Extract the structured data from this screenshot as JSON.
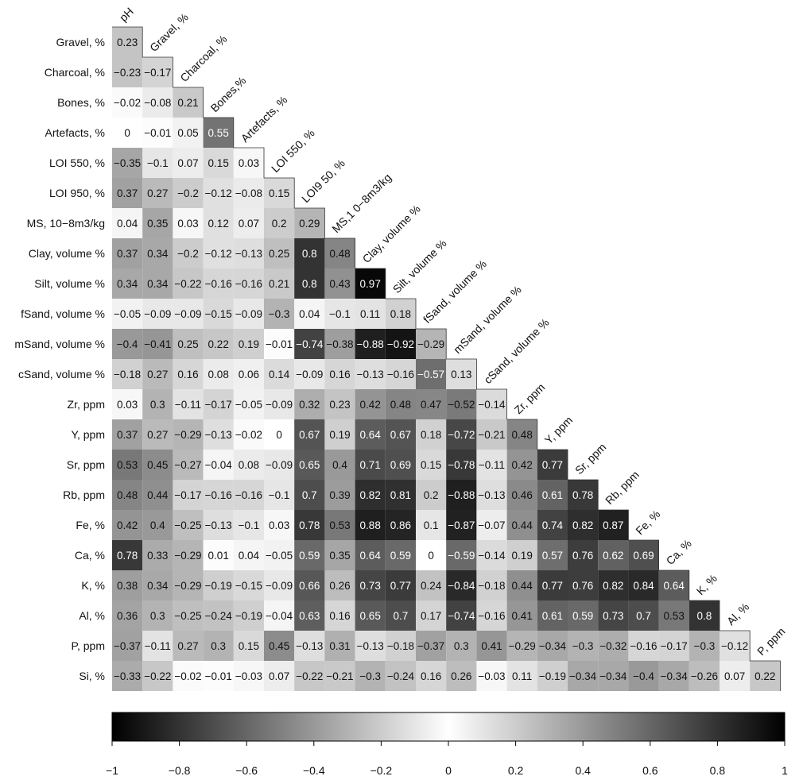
{
  "chart_data": {
    "type": "heatmap",
    "title": "",
    "variables": [
      "pH",
      "Gravel, %",
      "Charcoal, %",
      "Bones, %",
      "Artefacts, %",
      "LOI 550, %",
      "LOI 950, %",
      "MS, 10−8m3/kg",
      "Clay, volume %",
      "Silt, volume %",
      "fSand, volume %",
      "mSand, volume %",
      "cSand, volume %",
      "Zr, ppm",
      "Y, ppm",
      "Sr, ppm",
      "Rb, ppm",
      "Fe, %",
      "Ca, %",
      "K, %",
      "Al, %",
      "P, ppm",
      "Si, %"
    ],
    "column_labels": [
      "pH",
      "Gravel, %",
      "Charcoal, %",
      "Bones,%",
      "Artefacts, %",
      "LOI 550, %",
      "LOI9 50, %",
      "MS,1 0−8m3/kg",
      "Clay, volume %",
      "Silt, volume %",
      "fSand, volume %",
      "mSand, volume %",
      "cSand, volume %",
      "Zr, ppm",
      "Y, ppm",
      "Sr, ppm",
      "Rb, ppm",
      "Fe, %",
      "Ca, %",
      "K, %",
      "Al, %",
      "P, ppm"
    ],
    "value_labels": [
      [
        "0.23"
      ],
      [
        "−0.23",
        "−0.17"
      ],
      [
        "−0.02",
        "−0.08",
        "0.21"
      ],
      [
        "0",
        "−0.01",
        "0.05",
        "0.55"
      ],
      [
        "−0.35",
        "−0.1",
        "0.07",
        "0.15",
        "0.03"
      ],
      [
        "0.37",
        "0.27",
        "−0.2",
        "−0.12",
        "−0.08",
        "0.15"
      ],
      [
        "0.04",
        "0.35",
        "0.03",
        "0.12",
        "0.07",
        "0.2",
        "0.29"
      ],
      [
        "0.37",
        "0.34",
        "−0.2",
        "−0.12",
        "−0.13",
        "0.25",
        "0.8",
        "0.48"
      ],
      [
        "0.34",
        "0.34",
        "−0.22",
        "−0.16",
        "−0.16",
        "0.21",
        "0.8",
        "0.43",
        "0.97"
      ],
      [
        "−0.05",
        "−0.09",
        "−0.09",
        "−0.15",
        "−0.09",
        "−0.3",
        "0.04",
        "−0.1",
        "0.11",
        "0.18"
      ],
      [
        "−0.4",
        "−0.41",
        "0.25",
        "0.22",
        "0.19",
        "−0.01",
        "−0.74",
        "−0.38",
        "−0.88",
        "−0.92",
        "−0.29"
      ],
      [
        "−0.18",
        "0.27",
        "0.16",
        "0.08",
        "0.06",
        "0.14",
        "−0.09",
        "0.16",
        "−0.13",
        "−0.16",
        "−0.57",
        "0.13"
      ],
      [
        "0.03",
        "0.3",
        "−0.11",
        "−0.17",
        "−0.05",
        "−0.09",
        "0.32",
        "0.23",
        "0.42",
        "0.48",
        "0.47",
        "−0.52",
        "−0.14"
      ],
      [
        "0.37",
        "0.27",
        "−0.29",
        "−0.13",
        "−0.02",
        "0",
        "0.67",
        "0.19",
        "0.64",
        "0.67",
        "0.18",
        "−0.72",
        "−0.21",
        "0.48"
      ],
      [
        "0.53",
        "0.45",
        "−0.27",
        "−0.04",
        "0.08",
        "−0.09",
        "0.65",
        "0.4",
        "0.71",
        "0.69",
        "0.15",
        "−0.78",
        "−0.11",
        "0.42",
        "0.77"
      ],
      [
        "0.48",
        "0.44",
        "−0.17",
        "−0.16",
        "−0.16",
        "−0.1",
        "0.7",
        "0.39",
        "0.82",
        "0.81",
        "0.2",
        "−0.88",
        "−0.13",
        "0.46",
        "0.61",
        "0.78"
      ],
      [
        "0.42",
        "0.4",
        "−0.25",
        "−0.13",
        "−0.1",
        "0.03",
        "0.78",
        "0.53",
        "0.88",
        "0.86",
        "0.1",
        "−0.87",
        "−0.07",
        "0.44",
        "0.74",
        "0.82",
        "0.87"
      ],
      [
        "0.78",
        "0.33",
        "−0.29",
        "0.01",
        "0.04",
        "−0.05",
        "0.59",
        "0.35",
        "0.64",
        "0.59",
        "0",
        "−0.59",
        "−0.14",
        "0.19",
        "0.57",
        "0.76",
        "0.62",
        "0.69"
      ],
      [
        "0.38",
        "0.34",
        "−0.29",
        "−0.19",
        "−0.15",
        "−0.09",
        "0.66",
        "0.26",
        "0.73",
        "0.77",
        "0.24",
        "−0.84",
        "−0.18",
        "0.44",
        "0.77",
        "0.76",
        "0.82",
        "0.84",
        "0.64"
      ],
      [
        "0.36",
        "0.3",
        "−0.25",
        "−0.24",
        "−0.19",
        "−0.04",
        "0.63",
        "0.16",
        "0.65",
        "0.7",
        "0.17",
        "−0.74",
        "−0.16",
        "0.41",
        "0.61",
        "0.59",
        "0.73",
        "0.7",
        "0.53",
        "0.8"
      ],
      [
        "−0.37",
        "−0.11",
        "0.27",
        "0.3",
        "0.15",
        "0.45",
        "−0.13",
        "0.31",
        "−0.13",
        "−0.18",
        "−0.37",
        "0.3",
        "0.41",
        "−0.29",
        "−0.34",
        "−0.3",
        "−0.32",
        "−0.16",
        "−0.17",
        "−0.3",
        "−0.12"
      ],
      [
        "−0.33",
        "−0.22",
        "−0.02",
        "−0.01",
        "−0.03",
        "0.07",
        "−0.22",
        "−0.21",
        "−0.3",
        "−0.24",
        "0.16",
        "0.26",
        "−0.03",
        "0.11",
        "−0.19",
        "−0.34",
        "−0.34",
        "−0.4",
        "−0.34",
        "−0.26",
        "0.07",
        "0.22"
      ]
    ],
    "color_scale": {
      "low": "#000000",
      "mid": "#ffffff",
      "high": "#000000",
      "domain": [
        -1,
        1
      ]
    },
    "colorbar_ticks": [
      "−1",
      "−0.8",
      "−0.6",
      "−0.4",
      "−0.2",
      "0",
      "0.2",
      "0.4",
      "0.6",
      "0.8",
      "1"
    ],
    "legend": "bottom"
  }
}
